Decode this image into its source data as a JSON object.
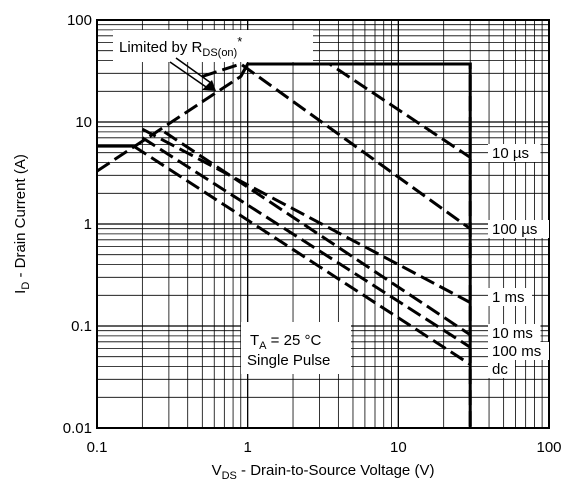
{
  "chart_data": {
    "type": "line",
    "scale": {
      "x": "log",
      "y": "log"
    },
    "xlim": [
      0.1,
      100
    ],
    "ylim": [
      0.01,
      100
    ],
    "grid": true,
    "x_ticks": [
      "0.1",
      "1",
      "10",
      "100"
    ],
    "y_ticks": [
      "0.01",
      "0.1",
      "1",
      "10",
      "100"
    ],
    "xlabel": {
      "main": "V",
      "sub": "DS",
      "rest": " - Drain-to-Source Voltage (V)"
    },
    "ylabel": {
      "main": "I",
      "sub": "D",
      "rest": " - Drain Current (A)"
    },
    "annotations": {
      "limit": {
        "prefix": "Limited by R",
        "sub": "DS(on)",
        "suffix": "*"
      },
      "conditions": {
        "line1_main": "T",
        "line1_sub": "A",
        "line1_rest": " = 25 °C",
        "line2": "Single Pulse"
      }
    },
    "boundary": {
      "name": "Limited by RDS(on)*",
      "points": [
        [
          0.1,
          3.3
        ],
        [
          0.9,
          28
        ],
        [
          1.0,
          37
        ],
        [
          30,
          37
        ],
        [
          30,
          0.01
        ]
      ],
      "low_current_limit": [
        [
          0.1,
          5.8
        ],
        [
          0.175,
          5.8
        ]
      ]
    },
    "series": [
      {
        "name": "10 µs",
        "points": [
          [
            0.9,
            28
          ],
          [
            1.0,
            37
          ],
          [
            3.5,
            37
          ],
          [
            30,
            4.5
          ]
        ]
      },
      {
        "name": "100 µs",
        "points": [
          [
            0.5,
            28
          ],
          [
            0.9,
            37
          ],
          [
            30,
            0.9
          ]
        ]
      },
      {
        "name": "1 ms",
        "points": [
          [
            0.2,
            8.5
          ],
          [
            30,
            0.17
          ]
        ]
      },
      {
        "name": "10 ms",
        "points": [
          [
            0.28,
            8.0
          ],
          [
            30,
            0.082
          ]
        ]
      },
      {
        "name": "100 ms",
        "points": [
          [
            0.2,
            7.0
          ],
          [
            30,
            0.062
          ]
        ]
      },
      {
        "name": "dc",
        "points": [
          [
            0.175,
            5.8
          ],
          [
            30,
            0.042
          ]
        ]
      }
    ]
  }
}
